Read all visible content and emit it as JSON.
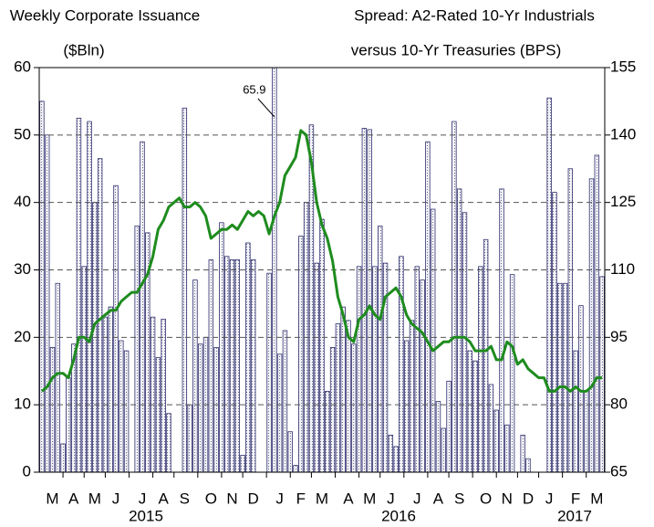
{
  "chart_data": {
    "type": "bar",
    "ylabel": [
      "Weekly Corporate Issuance",
      "($Bln)"
    ],
    "y2label": [
      "Spread: A2-Rated 10-Yr Industrials",
      "versus 10-Yr Treasuries (BPS)"
    ],
    "categories": [
      null,
      null,
      "M",
      null,
      null,
      null,
      "A",
      null,
      null,
      null,
      "M",
      null,
      null,
      null,
      "J",
      null,
      null,
      null,
      null,
      "J",
      null,
      null,
      null,
      "A",
      null,
      null,
      null,
      "S",
      null,
      null,
      null,
      null,
      "O",
      null,
      null,
      null,
      "N",
      null,
      null,
      null,
      "D",
      null,
      null,
      null,
      null,
      "J",
      null,
      null,
      null,
      "F",
      null,
      null,
      null,
      "M",
      null,
      null,
      null,
      null,
      "A",
      null,
      null,
      null,
      "M",
      null,
      null,
      null,
      "J",
      null,
      null,
      null,
      null,
      "J",
      null,
      null,
      null,
      "A",
      null,
      null,
      null,
      "S",
      null,
      null,
      null,
      null,
      "O",
      null,
      null,
      null,
      "N",
      null,
      null,
      null,
      "D",
      null,
      null,
      null,
      "J",
      null,
      null,
      null,
      null,
      "F",
      null,
      null,
      null,
      "M",
      null
    ],
    "year_labels": [
      "2015",
      "2016",
      "2017"
    ],
    "series": [
      {
        "type": "bar",
        "color": "#2e2e6e",
        "values": [
          55,
          50,
          18.5,
          28,
          4.2,
          14,
          19,
          52.5,
          30.5,
          52,
          40,
          46.5,
          23,
          24.5,
          42.5,
          19.5,
          18,
          0,
          36.5,
          49,
          35.5,
          23,
          17,
          22.7,
          8.7,
          0,
          0,
          54,
          10,
          28.5,
          19,
          20,
          31.5,
          18.5,
          37,
          32,
          31.5,
          31.5,
          2.5,
          34,
          31.5,
          0,
          0,
          29.5,
          65.9,
          17.5,
          21,
          6,
          1,
          35,
          40,
          51.5,
          31,
          37.5,
          12,
          18.5,
          22,
          24.5,
          22.5,
          19,
          30.5,
          51,
          50.8,
          30.5,
          36.5,
          31,
          5.5,
          3.8,
          32,
          19.5,
          22.5,
          30.5,
          28.5,
          49,
          39,
          10.5,
          6.5,
          13.5,
          52,
          42,
          38.5,
          18,
          16.5,
          30.5,
          34.5,
          13,
          9.2,
          42,
          7,
          29.3,
          0,
          5.5,
          2,
          0,
          0,
          0,
          55.5,
          41.5,
          28,
          28,
          45,
          18,
          24.7,
          12,
          43.5,
          47,
          29
        ]
      },
      {
        "type": "line",
        "axis": "y2",
        "color": "#1e8c1e",
        "values": [
          83,
          84,
          86,
          87,
          87,
          86,
          90,
          95,
          95,
          94,
          98,
          99,
          100,
          101,
          101,
          103,
          104,
          105,
          105,
          107,
          109,
          113,
          119,
          121,
          124,
          125,
          126,
          124,
          124,
          125,
          124,
          122,
          117,
          118,
          119,
          119,
          120,
          119,
          121,
          123,
          122,
          123,
          122,
          118,
          122,
          125,
          131,
          133,
          135,
          141,
          140,
          134,
          125,
          120,
          117,
          112,
          104,
          100,
          95,
          94,
          99,
          100,
          102,
          100,
          99,
          104,
          105,
          106,
          104,
          100,
          98,
          97,
          96,
          94,
          92,
          93,
          94,
          94,
          95,
          95,
          95,
          94,
          92,
          92,
          92,
          93,
          90,
          90,
          94,
          93,
          89,
          90,
          88,
          87,
          86,
          86,
          83,
          83,
          84,
          84,
          83,
          84,
          83,
          83,
          84,
          86,
          86
        ]
      }
    ],
    "annotations": [
      {
        "text": "65.9"
      }
    ],
    "ylim": [
      0,
      60
    ],
    "yticks": [
      0,
      10,
      20,
      30,
      40,
      50,
      60
    ],
    "y2lim": [
      65,
      155
    ],
    "y2ticks": [
      65,
      80,
      95,
      110,
      125,
      140,
      155
    ],
    "grid": true
  }
}
